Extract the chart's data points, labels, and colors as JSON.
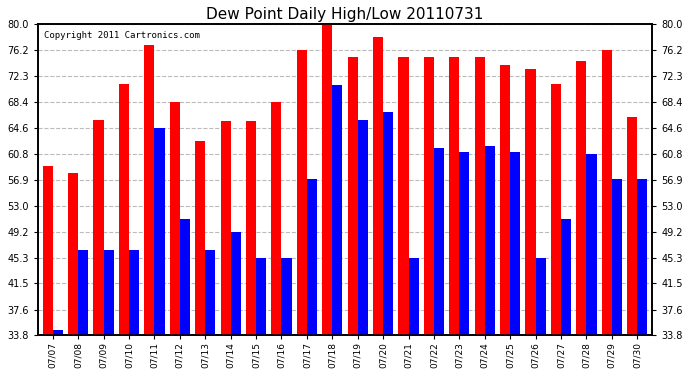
{
  "title": "Dew Point Daily High/Low 20110731",
  "copyright": "Copyright 2011 Cartronics.com",
  "dates": [
    "07/07",
    "07/08",
    "07/09",
    "07/10",
    "07/11",
    "07/12",
    "07/13",
    "07/14",
    "07/15",
    "07/16",
    "07/17",
    "07/18",
    "07/19",
    "07/20",
    "07/21",
    "07/22",
    "07/23",
    "07/24",
    "07/25",
    "07/26",
    "07/27",
    "07/28",
    "07/29",
    "07/30"
  ],
  "highs": [
    59.0,
    57.9,
    65.8,
    71.1,
    77.0,
    68.4,
    62.6,
    65.7,
    65.7,
    68.4,
    76.2,
    80.0,
    75.2,
    78.1,
    75.2,
    75.2,
    75.2,
    75.2,
    74.0,
    73.4,
    71.1,
    74.5,
    76.2,
    66.2
  ],
  "lows": [
    34.5,
    46.4,
    46.4,
    46.4,
    64.6,
    51.0,
    46.4,
    49.2,
    45.3,
    45.3,
    57.0,
    71.0,
    65.8,
    67.0,
    45.3,
    61.7,
    61.0,
    62.0,
    61.0,
    45.3,
    51.0,
    60.8,
    57.0,
    57.0
  ],
  "high_color": "#ff0000",
  "low_color": "#0000ff",
  "bg_color": "#ffffff",
  "plot_bg": "#ffffff",
  "yticks": [
    33.8,
    37.6,
    41.5,
    45.3,
    49.2,
    53.0,
    56.9,
    60.8,
    64.6,
    68.4,
    72.3,
    76.2,
    80.0
  ],
  "ylim": [
    33.8,
    80.0
  ],
  "grid_color": "#bbbbbb",
  "bar_width": 0.4,
  "figwidth": 6.9,
  "figheight": 3.75,
  "dpi": 100
}
